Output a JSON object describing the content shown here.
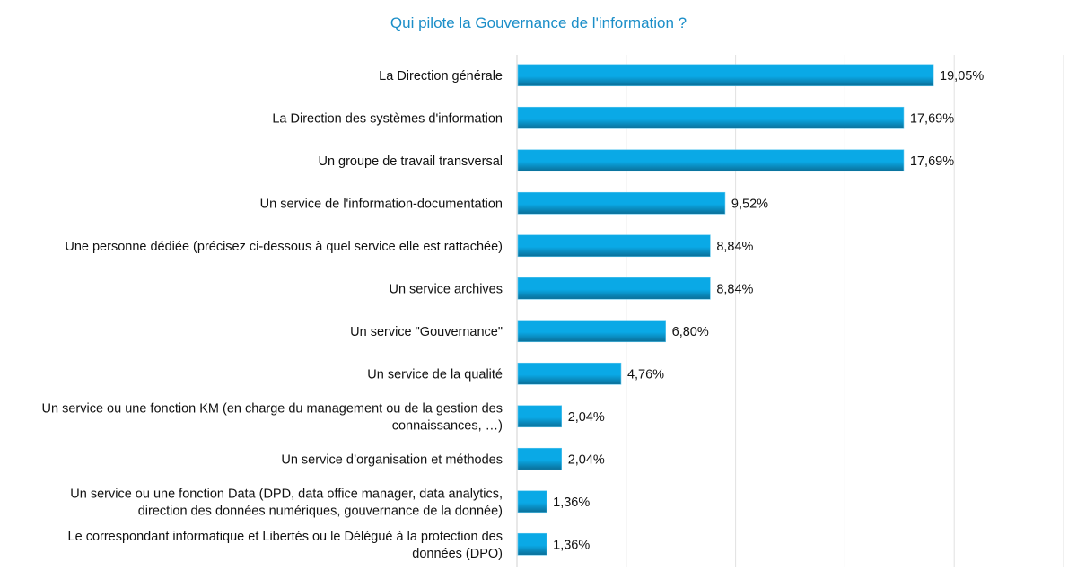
{
  "chart_data": {
    "type": "bar",
    "orientation": "horizontal",
    "title": "Qui pilote la Gouvernance de l'information ?",
    "xlabel": "",
    "ylabel": "",
    "xlim": [
      0,
      25
    ],
    "grid": true,
    "unit": "%",
    "bar_color": "#0aa9e6",
    "bar_color_dark": "#0a6e97",
    "title_color": "#1b8ec8",
    "categories": [
      [
        "La Direction générale"
      ],
      [
        "La Direction des systèmes d'information"
      ],
      [
        "Un groupe de travail transversal"
      ],
      [
        "Un service de l'information-documentation"
      ],
      [
        "Une personne dédiée (précisez ci-dessous à quel service elle est rattachée)"
      ],
      [
        "Un service archives"
      ],
      [
        "Un service \"Gouvernance\""
      ],
      [
        "Un service de la qualité"
      ],
      [
        "Un service ou une fonction KM (en charge du management ou de la gestion des",
        "connaissances, …)"
      ],
      [
        "Un service d’organisation et méthodes"
      ],
      [
        "Un service ou une fonction Data (DPD, data office manager, data analytics,",
        "direction des données numériques, gouvernance de la donnée)"
      ],
      [
        "Le correspondant informatique et Libertés ou le Délégué à la protection des",
        "données (DPO)"
      ]
    ],
    "values": [
      19.05,
      17.69,
      17.69,
      9.52,
      8.84,
      8.84,
      6.8,
      4.76,
      2.04,
      2.04,
      1.36,
      1.36
    ],
    "data_labels": [
      "19,05%",
      "17,69%",
      "17,69%",
      "9,52%",
      "8,84%",
      "8,84%",
      "6,80%",
      "4,76%",
      "2,04%",
      "2,04%",
      "1,36%",
      "1,36%"
    ]
  }
}
